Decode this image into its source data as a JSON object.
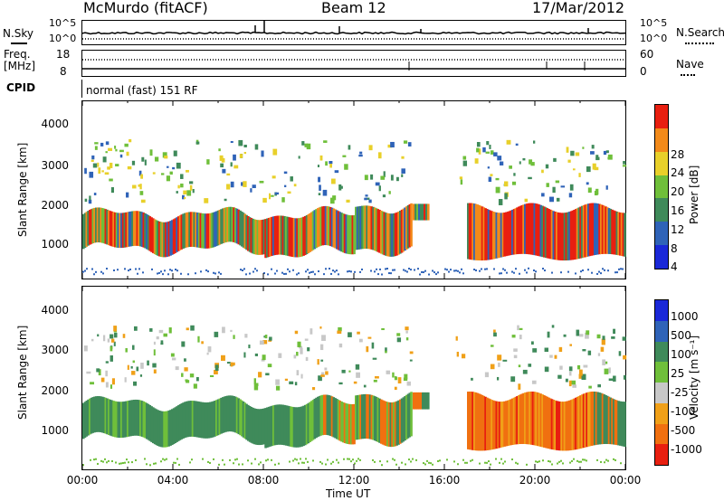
{
  "header": {
    "station": "McMurdo (fitACF)",
    "beam": "Beam 12",
    "date": "17/Mar/2012"
  },
  "noise_panel": {
    "left_label": "N.Sky",
    "right_label": "N.Search",
    "left_ticks": [
      "10^5",
      "10^0"
    ],
    "right_ticks": [
      "10^5",
      "10^0"
    ]
  },
  "freq_panel": {
    "left_label_line1": "Freq.",
    "left_label_line2": "[MHz]",
    "right_label": "Nave",
    "left_ticks": [
      "18",
      "8"
    ],
    "right_ticks": [
      "60",
      "0"
    ]
  },
  "cpid": {
    "label": "CPID",
    "text": "normal (fast) 151 RF"
  },
  "chart_data": [
    {
      "type": "heatmap",
      "title": "",
      "ylabel": "Slant Range [km]",
      "xlabel": "",
      "ylim": [
        180,
        4500
      ],
      "yticks": [
        "1000",
        "2000",
        "3000",
        "4000"
      ],
      "colorbar_label": "Power [dB]",
      "colorbar_ticks": [
        "4",
        "8",
        "12",
        "16",
        "20",
        "24",
        "28"
      ],
      "colorbar_colors": [
        "#1a28d8",
        "#2f63b8",
        "#3f8a5a",
        "#6fbf3a",
        "#e8d02a",
        "#f28a1a",
        "#e81f10"
      ],
      "x_range_ut": [
        "00:00",
        "24:00"
      ],
      "bands": [
        {
          "t0": 0.0,
          "t1": 14.5,
          "r0": 900,
          "r1": 1900,
          "level": "medium-high"
        },
        {
          "t0": 17.0,
          "t1": 24.0,
          "r0": 650,
          "r1": 2000,
          "level": "high"
        },
        {
          "t0": 0.0,
          "t1": 24.0,
          "r0": 180,
          "r1": 450,
          "level": "low"
        }
      ]
    },
    {
      "type": "heatmap",
      "title": "",
      "ylabel": "Slant Range [km]",
      "xlabel": "Time UT",
      "ylim": [
        180,
        4500
      ],
      "yticks": [
        "1000",
        "2000",
        "3000",
        "4000"
      ],
      "xticks": [
        "00:00",
        "04:00",
        "08:00",
        "12:00",
        "16:00",
        "20:00",
        "00:00"
      ],
      "colorbar_label": "Velocity [m s⁻¹]",
      "colorbar_ticks": [
        "1000",
        "500",
        "100",
        "25",
        "-25",
        "-100",
        "-500",
        "-1000"
      ],
      "colorbar_colors": [
        "#1a28d8",
        "#2f63b8",
        "#3f8a5a",
        "#6fbf3a",
        "#c8c8c8",
        "#f0a018",
        "#f07010",
        "#e81f10"
      ],
      "x_range_ut": [
        "00:00",
        "24:00"
      ],
      "bands": [
        {
          "t0": 0.0,
          "t1": 14.5,
          "r0": 850,
          "r1": 1800,
          "level": "weak-positive"
        },
        {
          "t0": 17.0,
          "t1": 24.0,
          "r0": 700,
          "r1": 2000,
          "level": "negative"
        }
      ]
    }
  ]
}
